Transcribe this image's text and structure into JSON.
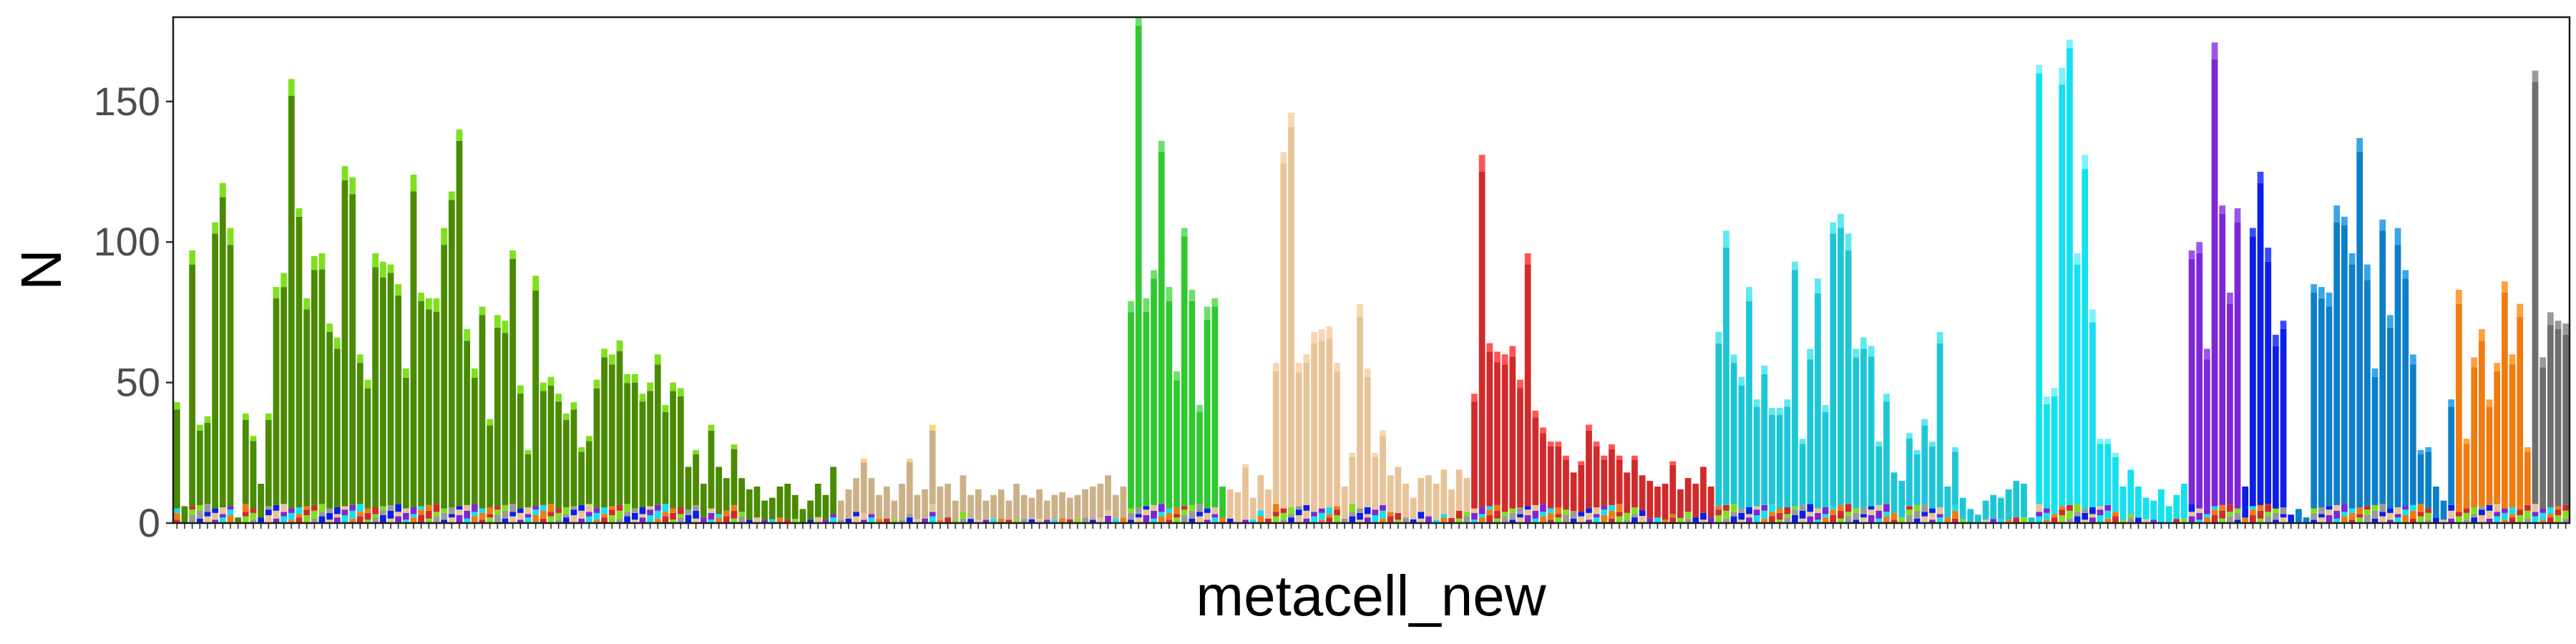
{
  "chart_data": {
    "type": "bar",
    "stacked": true,
    "title": "",
    "xlabel": "metacell_new",
    "ylabel": "N",
    "ylim": [
      0,
      180
    ],
    "yticks": [
      0,
      50,
      100,
      150
    ],
    "grid": false,
    "legend": "none",
    "x_tick_labels_note": "one rotated label per bar; labels are too small to read individually",
    "groups": [
      {
        "color": "#4a8a00",
        "cap": "#7fe01e",
        "totals": [
          43,
          6,
          97,
          35,
          38,
          107,
          121,
          105,
          2,
          39,
          31,
          14,
          39,
          84,
          89,
          158,
          112,
          80,
          95,
          96,
          71,
          66,
          127,
          123,
          60,
          51,
          96,
          93,
          92,
          85,
          55,
          124,
          82,
          80,
          80,
          105,
          118,
          140,
          69,
          55,
          77,
          37,
          74,
          72,
          97,
          49,
          26,
          88,
          50,
          52,
          46,
          39,
          43,
          27,
          31,
          51,
          62,
          60,
          65,
          53,
          53,
          46,
          50,
          60,
          42,
          50,
          48,
          20,
          26,
          14,
          35,
          20,
          16,
          28,
          16,
          12,
          13,
          8,
          9,
          13,
          14,
          10,
          5,
          8,
          14,
          10,
          20
        ]
      },
      {
        "color": "#ccb088",
        "cap": "#ffd27f",
        "totals": [
          8,
          12,
          16,
          23,
          16,
          10,
          13,
          8,
          14,
          23,
          10,
          12,
          35,
          13,
          14,
          8,
          17,
          10,
          12,
          8,
          10,
          12,
          8,
          14,
          10,
          9,
          12,
          8,
          10,
          11,
          9,
          10,
          12,
          13,
          14,
          17,
          10,
          13
        ]
      },
      {
        "color": "#2fc82f",
        "cap": "#6be06b",
        "totals": [
          79,
          182,
          80,
          90,
          136,
          84,
          54,
          105,
          83,
          42,
          77,
          80,
          13
        ]
      },
      {
        "color": "#e8c398",
        "cap": "#f6d7b2",
        "totals": [
          12,
          11,
          21,
          9,
          17,
          12,
          57,
          132,
          146,
          57,
          60,
          68,
          69,
          70,
          57,
          13,
          25,
          78,
          55,
          25,
          33,
          17,
          20,
          14,
          9,
          16,
          17,
          14,
          19,
          12,
          19,
          16
        ]
      },
      {
        "color": "#d02a2a",
        "cap": "#ff5555",
        "totals": [
          46,
          131,
          64,
          61,
          60,
          63,
          51,
          96,
          40,
          34,
          29,
          29,
          24,
          18,
          22,
          35,
          29,
          24,
          28,
          24,
          18,
          24,
          17,
          15,
          13,
          14,
          22,
          12,
          16,
          14,
          20,
          13
        ]
      },
      {
        "color": "#1cc6d6",
        "cap": "#5ee8f2",
        "totals": [
          68,
          104,
          60,
          52,
          84,
          44,
          56,
          41,
          41,
          44,
          93,
          30,
          62,
          87,
          42,
          107,
          110,
          103,
          62,
          66,
          63,
          29,
          46,
          18,
          15,
          32,
          26,
          37,
          29,
          68,
          13,
          27,
          9,
          5,
          3,
          8,
          10,
          9,
          12,
          15,
          14,
          2
        ]
      },
      {
        "color": "#13e0f0",
        "cap": "#7af3fb",
        "totals": [
          163,
          45,
          48,
          162,
          172,
          96,
          131,
          76,
          30,
          30,
          25,
          13,
          19,
          13,
          9,
          8,
          12,
          6,
          10,
          14
        ]
      },
      {
        "color": "#7d26d6",
        "cap": "#9b55e8",
        "totals": [
          97,
          100,
          62,
          171,
          113,
          82,
          112
        ]
      },
      {
        "color": "#0a1fe8",
        "cap": "#3a4bff",
        "totals": [
          13,
          105,
          125,
          98,
          67,
          72,
          3
        ]
      },
      {
        "color": "#0c7fc8",
        "cap": "#3aa6e8",
        "totals": [
          5,
          2,
          85,
          84,
          82,
          113,
          109,
          96,
          137,
          92,
          55,
          108,
          74,
          105,
          90,
          60,
          26,
          27,
          13,
          8,
          44
        ]
      },
      {
        "color": "#f07c10",
        "cap": "#ffa040",
        "totals": [
          83,
          30,
          59,
          69,
          44,
          57,
          86,
          60,
          78,
          27
        ]
      },
      {
        "color": "#6e6e6e",
        "cap": "#9a9a9a",
        "totals": [
          161,
          59,
          75,
          72,
          71
        ]
      }
    ]
  }
}
